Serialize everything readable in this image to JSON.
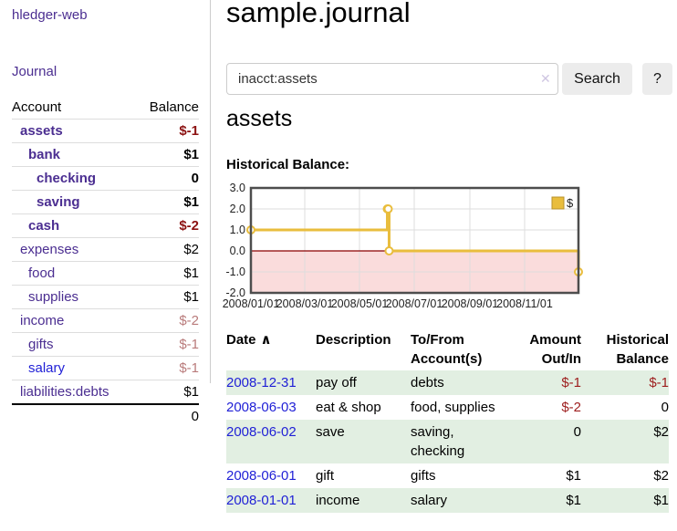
{
  "colors": {
    "accent": "#4b2e91",
    "link-blue": "#1f1fd6",
    "neg-strong": "#8c1212",
    "neg-soft": "#b97b7b",
    "neg-table": "#9d1d1d",
    "row-green": "#e2efe2",
    "chart-gold": "#e9bd3d",
    "chart-pink": "#fadcdc",
    "zero-red": "#8b0000"
  },
  "app": {
    "brand": "hledger-web",
    "nav_journal": "Journal"
  },
  "sidebar": {
    "header": {
      "account": "Account",
      "balance": "Balance"
    },
    "accounts": [
      {
        "name": "assets",
        "balance": "$-1",
        "depth": 1,
        "bold": true,
        "balance_style": "neg-strong",
        "link_color": "purple"
      },
      {
        "name": "bank",
        "balance": "$1",
        "depth": 2,
        "bold": true,
        "balance_style": "",
        "link_color": "purple"
      },
      {
        "name": "checking",
        "balance": "0",
        "depth": 3,
        "bold": true,
        "balance_style": "",
        "link_color": "purple"
      },
      {
        "name": "saving",
        "balance": "$1",
        "depth": 3,
        "bold": true,
        "balance_style": "",
        "link_color": "purple"
      },
      {
        "name": "cash",
        "balance": "$-2",
        "depth": 2,
        "bold": true,
        "balance_style": "neg-strong",
        "link_color": "purple"
      },
      {
        "name": "expenses",
        "balance": "$2",
        "depth": 1,
        "bold": false,
        "balance_style": "",
        "link_color": "purple"
      },
      {
        "name": "food",
        "balance": "$1",
        "depth": 2,
        "bold": false,
        "balance_style": "",
        "link_color": "purple"
      },
      {
        "name": "supplies",
        "balance": "$1",
        "depth": 2,
        "bold": false,
        "balance_style": "",
        "link_color": "purple"
      },
      {
        "name": "income",
        "balance": "$-2",
        "depth": 1,
        "bold": false,
        "balance_style": "neg-soft",
        "link_color": "purple"
      },
      {
        "name": "gifts",
        "balance": "$-1",
        "depth": 2,
        "bold": false,
        "balance_style": "neg-soft",
        "link_color": "purple"
      },
      {
        "name": "salary",
        "balance": "$-1",
        "depth": 2,
        "bold": false,
        "balance_style": "neg-soft",
        "link_color": "blue"
      },
      {
        "name": "liabilities:debts",
        "balance": "$1",
        "depth": 1,
        "bold": false,
        "balance_style": "",
        "link_color": "purple"
      }
    ],
    "total": "0"
  },
  "main": {
    "title": "sample.journal",
    "search": {
      "value": "inacct:assets",
      "clear_icon": "✕",
      "search_button": "Search",
      "help_button": "?"
    },
    "account_heading": "assets",
    "chart_label": "Historical Balance:"
  },
  "chart_data": {
    "type": "line",
    "title": "Historical Balance",
    "step": true,
    "series": [
      {
        "name": "$",
        "color": "#e9bd3d",
        "points": [
          [
            "2008-01-01",
            1.0
          ],
          [
            "2008-06-01",
            2.0
          ],
          [
            "2008-06-02",
            2.0
          ],
          [
            "2008-06-03",
            0.0
          ],
          [
            "2008-12-31",
            -1.0
          ]
        ]
      }
    ],
    "x_start": "2008-01-01",
    "x_end": "2008-12-31",
    "x_ticks": [
      "2008/01/01",
      "2008/03/01",
      "2008/05/01",
      "2008/07/01",
      "2008/09/01",
      "2008/11/01"
    ],
    "y_ticks": [
      3.0,
      2.0,
      1.0,
      0.0,
      -1.0,
      -2.0
    ],
    "ylim": [
      -2.0,
      3.0
    ],
    "grid": true,
    "legend": [
      "$"
    ],
    "legend_position": "top-right",
    "negative_region_color": "#fadcdc",
    "zero_line_color": "#8b0000",
    "marker": "circle"
  },
  "register": {
    "columns": [
      "Date",
      "Description",
      "To/From Account(s)",
      "Amount Out/In",
      "Historical Balance"
    ],
    "sort_indicator": "∧",
    "rows": [
      {
        "date": "2008-12-31",
        "description": "pay off",
        "accounts": "debts",
        "amount": "$-1",
        "balance": "$-1",
        "amount_negative": true,
        "balance_negative": true
      },
      {
        "date": "2008-06-03",
        "description": "eat & shop",
        "accounts": "food, supplies",
        "amount": "$-2",
        "balance": "0",
        "amount_negative": true,
        "balance_negative": false
      },
      {
        "date": "2008-06-02",
        "description": "save",
        "accounts": "saving, checking",
        "amount": "0",
        "balance": "$2",
        "amount_negative": false,
        "balance_negative": false
      },
      {
        "date": "2008-06-01",
        "description": "gift",
        "accounts": "gifts",
        "amount": "$1",
        "balance": "$2",
        "amount_negative": false,
        "balance_negative": false
      },
      {
        "date": "2008-01-01",
        "description": "income",
        "accounts": "salary",
        "amount": "$1",
        "balance": "$1",
        "amount_negative": false,
        "balance_negative": false
      }
    ]
  }
}
